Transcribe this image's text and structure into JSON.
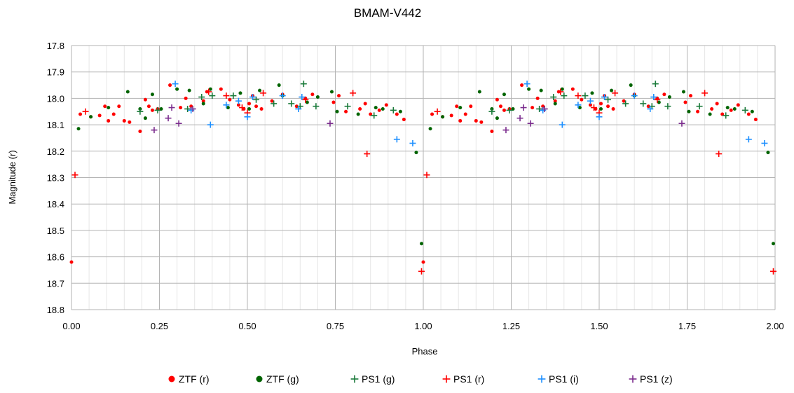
{
  "chart_data": {
    "type": "scatter",
    "title": "BMAM-V442",
    "xlabel": "Phase",
    "ylabel": "Magnitude (r)",
    "xlim": [
      0,
      2
    ],
    "ylim": [
      17.8,
      18.8
    ],
    "y_inverted": true,
    "grid": true,
    "legend_position": "bottom",
    "x_ticks": [
      "0.00",
      "0.25",
      "0.50",
      "0.75",
      "1.00",
      "1.25",
      "1.50",
      "1.75",
      "2.00"
    ],
    "y_ticks": [
      "17.8",
      "17.9",
      "18.0",
      "18.1",
      "18.2",
      "18.3",
      "18.4",
      "18.5",
      "18.6",
      "18.7",
      "18.8"
    ],
    "series": [
      {
        "name": "ZTF (r)",
        "marker": "dot",
        "color": "#ff0000",
        "points": [
          [
            0.0,
            18.62
          ],
          [
            0.025,
            18.06
          ],
          [
            0.055,
            18.07
          ],
          [
            0.08,
            18.065
          ],
          [
            0.095,
            18.03
          ],
          [
            0.105,
            18.085
          ],
          [
            0.12,
            18.06
          ],
          [
            0.135,
            18.03
          ],
          [
            0.15,
            18.085
          ],
          [
            0.165,
            18.09
          ],
          [
            0.195,
            18.125
          ],
          [
            0.21,
            18.005
          ],
          [
            0.22,
            18.03
          ],
          [
            0.23,
            18.045
          ],
          [
            0.245,
            18.04
          ],
          [
            0.28,
            17.95
          ],
          [
            0.31,
            18.035
          ],
          [
            0.325,
            18.0
          ],
          [
            0.34,
            18.03
          ],
          [
            0.375,
            18.01
          ],
          [
            0.385,
            17.975
          ],
          [
            0.425,
            17.965
          ],
          [
            0.45,
            18.005
          ],
          [
            0.475,
            18.025
          ],
          [
            0.49,
            18.04
          ],
          [
            0.505,
            18.02
          ],
          [
            0.515,
            17.99
          ],
          [
            0.525,
            18.03
          ],
          [
            0.54,
            18.04
          ],
          [
            0.57,
            18.01
          ],
          [
            0.6,
            17.985
          ],
          [
            0.64,
            18.03
          ],
          [
            0.665,
            18.0
          ],
          [
            0.685,
            17.985
          ],
          [
            0.745,
            18.015
          ],
          [
            0.76,
            17.99
          ],
          [
            0.78,
            18.05
          ],
          [
            0.82,
            18.04
          ],
          [
            0.835,
            18.02
          ],
          [
            0.85,
            18.06
          ],
          [
            0.875,
            18.045
          ],
          [
            0.895,
            18.025
          ],
          [
            0.925,
            18.06
          ],
          [
            0.945,
            18.08
          ],
          [
            1.0,
            18.62
          ],
          [
            1.025,
            18.06
          ],
          [
            1.055,
            18.07
          ],
          [
            1.08,
            18.065
          ],
          [
            1.095,
            18.03
          ],
          [
            1.105,
            18.085
          ],
          [
            1.12,
            18.06
          ],
          [
            1.135,
            18.03
          ],
          [
            1.15,
            18.085
          ],
          [
            1.165,
            18.09
          ],
          [
            1.195,
            18.125
          ],
          [
            1.21,
            18.005
          ],
          [
            1.22,
            18.03
          ],
          [
            1.23,
            18.045
          ],
          [
            1.245,
            18.04
          ],
          [
            1.28,
            17.95
          ],
          [
            1.31,
            18.035
          ],
          [
            1.325,
            18.0
          ],
          [
            1.34,
            18.03
          ],
          [
            1.375,
            18.01
          ],
          [
            1.385,
            17.975
          ],
          [
            1.425,
            17.965
          ],
          [
            1.45,
            18.005
          ],
          [
            1.475,
            18.025
          ],
          [
            1.49,
            18.04
          ],
          [
            1.505,
            18.02
          ],
          [
            1.515,
            17.99
          ],
          [
            1.525,
            18.03
          ],
          [
            1.54,
            18.04
          ],
          [
            1.57,
            18.01
          ],
          [
            1.6,
            17.985
          ],
          [
            1.64,
            18.03
          ],
          [
            1.665,
            18.0
          ],
          [
            1.685,
            17.985
          ],
          [
            1.745,
            18.015
          ],
          [
            1.76,
            17.99
          ],
          [
            1.78,
            18.05
          ],
          [
            1.82,
            18.04
          ],
          [
            1.835,
            18.02
          ],
          [
            1.85,
            18.06
          ],
          [
            1.875,
            18.045
          ],
          [
            1.895,
            18.025
          ],
          [
            1.925,
            18.06
          ],
          [
            1.945,
            18.08
          ]
        ]
      },
      {
        "name": "ZTF (g)",
        "marker": "dot",
        "color": "#006400",
        "points": [
          [
            0.02,
            18.115
          ],
          [
            0.055,
            18.07
          ],
          [
            0.105,
            18.035
          ],
          [
            0.16,
            17.975
          ],
          [
            0.195,
            18.04
          ],
          [
            0.21,
            18.075
          ],
          [
            0.23,
            17.985
          ],
          [
            0.255,
            18.04
          ],
          [
            0.3,
            17.965
          ],
          [
            0.335,
            17.97
          ],
          [
            0.375,
            18.02
          ],
          [
            0.395,
            17.965
          ],
          [
            0.445,
            18.035
          ],
          [
            0.48,
            17.98
          ],
          [
            0.505,
            18.04
          ],
          [
            0.535,
            17.97
          ],
          [
            0.59,
            17.95
          ],
          [
            0.6,
            17.99
          ],
          [
            0.67,
            18.015
          ],
          [
            0.7,
            17.995
          ],
          [
            0.74,
            17.975
          ],
          [
            0.755,
            18.05
          ],
          [
            0.815,
            18.06
          ],
          [
            0.865,
            18.035
          ],
          [
            0.885,
            18.04
          ],
          [
            0.935,
            18.05
          ],
          [
            0.98,
            18.205
          ],
          [
            0.995,
            18.55
          ],
          [
            1.02,
            18.115
          ],
          [
            1.055,
            18.07
          ],
          [
            1.105,
            18.035
          ],
          [
            1.16,
            17.975
          ],
          [
            1.195,
            18.04
          ],
          [
            1.21,
            18.075
          ],
          [
            1.23,
            17.985
          ],
          [
            1.255,
            18.04
          ],
          [
            1.3,
            17.965
          ],
          [
            1.335,
            17.97
          ],
          [
            1.375,
            18.02
          ],
          [
            1.395,
            17.965
          ],
          [
            1.445,
            18.035
          ],
          [
            1.48,
            17.98
          ],
          [
            1.505,
            18.04
          ],
          [
            1.535,
            17.97
          ],
          [
            1.59,
            17.95
          ],
          [
            1.6,
            17.99
          ],
          [
            1.67,
            18.015
          ],
          [
            1.7,
            17.995
          ],
          [
            1.74,
            17.975
          ],
          [
            1.755,
            18.05
          ],
          [
            1.815,
            18.06
          ],
          [
            1.865,
            18.035
          ],
          [
            1.885,
            18.04
          ],
          [
            1.935,
            18.05
          ],
          [
            1.98,
            18.205
          ],
          [
            1.995,
            18.55
          ]
        ]
      },
      {
        "name": "PS1 (g)",
        "marker": "plus",
        "color": "#1a7a3a",
        "points": [
          [
            0.195,
            18.05
          ],
          [
            0.245,
            18.045
          ],
          [
            0.33,
            18.04
          ],
          [
            0.37,
            17.995
          ],
          [
            0.4,
            17.99
          ],
          [
            0.46,
            17.99
          ],
          [
            0.525,
            18.005
          ],
          [
            0.575,
            18.02
          ],
          [
            0.625,
            18.02
          ],
          [
            0.65,
            18.03
          ],
          [
            0.66,
            17.945
          ],
          [
            0.695,
            18.03
          ],
          [
            0.785,
            18.03
          ],
          [
            0.86,
            18.065
          ],
          [
            0.915,
            18.045
          ],
          [
            1.195,
            18.05
          ],
          [
            1.245,
            18.045
          ],
          [
            1.33,
            18.04
          ],
          [
            1.37,
            17.995
          ],
          [
            1.4,
            17.99
          ],
          [
            1.46,
            17.99
          ],
          [
            1.525,
            18.005
          ],
          [
            1.575,
            18.02
          ],
          [
            1.625,
            18.02
          ],
          [
            1.65,
            18.03
          ],
          [
            1.66,
            17.945
          ],
          [
            1.695,
            18.03
          ],
          [
            1.785,
            18.03
          ],
          [
            1.86,
            18.065
          ],
          [
            1.915,
            18.045
          ]
        ]
      },
      {
        "name": "PS1 (r)",
        "marker": "plus",
        "color": "#ff0000",
        "points": [
          [
            0.01,
            18.29
          ],
          [
            0.04,
            18.05
          ],
          [
            0.39,
            17.975
          ],
          [
            0.44,
            17.99
          ],
          [
            0.485,
            18.035
          ],
          [
            0.5,
            18.055
          ],
          [
            0.545,
            17.98
          ],
          [
            0.665,
            18.005
          ],
          [
            0.8,
            17.98
          ],
          [
            0.84,
            18.21
          ],
          [
            0.995,
            18.655
          ],
          [
            1.01,
            18.29
          ],
          [
            1.04,
            18.05
          ],
          [
            1.39,
            17.975
          ],
          [
            1.44,
            17.99
          ],
          [
            1.485,
            18.035
          ],
          [
            1.5,
            18.055
          ],
          [
            1.545,
            17.98
          ],
          [
            1.665,
            18.005
          ],
          [
            1.8,
            17.98
          ],
          [
            1.84,
            18.21
          ],
          [
            1.995,
            18.655
          ]
        ]
      },
      {
        "name": "PS1 (i)",
        "marker": "plus",
        "color": "#1e90ff",
        "points": [
          [
            0.295,
            17.945
          ],
          [
            0.34,
            18.045
          ],
          [
            0.395,
            18.1
          ],
          [
            0.44,
            18.025
          ],
          [
            0.475,
            18.01
          ],
          [
            0.5,
            18.07
          ],
          [
            0.515,
            17.995
          ],
          [
            0.6,
            17.99
          ],
          [
            0.645,
            18.04
          ],
          [
            0.655,
            17.995
          ],
          [
            0.925,
            18.155
          ],
          [
            0.97,
            18.17
          ],
          [
            1.295,
            17.945
          ],
          [
            1.34,
            18.045
          ],
          [
            1.395,
            18.1
          ],
          [
            1.44,
            18.025
          ],
          [
            1.475,
            18.01
          ],
          [
            1.5,
            18.07
          ],
          [
            1.515,
            17.995
          ],
          [
            1.6,
            17.99
          ],
          [
            1.645,
            18.04
          ],
          [
            1.655,
            17.995
          ],
          [
            1.925,
            18.155
          ],
          [
            1.97,
            18.17
          ]
        ]
      },
      {
        "name": "PS1 (z)",
        "marker": "plus",
        "color": "#7b2d8e",
        "points": [
          [
            0.235,
            18.12
          ],
          [
            0.275,
            18.075
          ],
          [
            0.285,
            18.035
          ],
          [
            0.305,
            18.095
          ],
          [
            0.345,
            18.04
          ],
          [
            0.735,
            18.095
          ],
          [
            1.235,
            18.12
          ],
          [
            1.275,
            18.075
          ],
          [
            1.285,
            18.035
          ],
          [
            1.305,
            18.095
          ],
          [
            1.345,
            18.04
          ],
          [
            1.735,
            18.095
          ]
        ]
      }
    ]
  }
}
